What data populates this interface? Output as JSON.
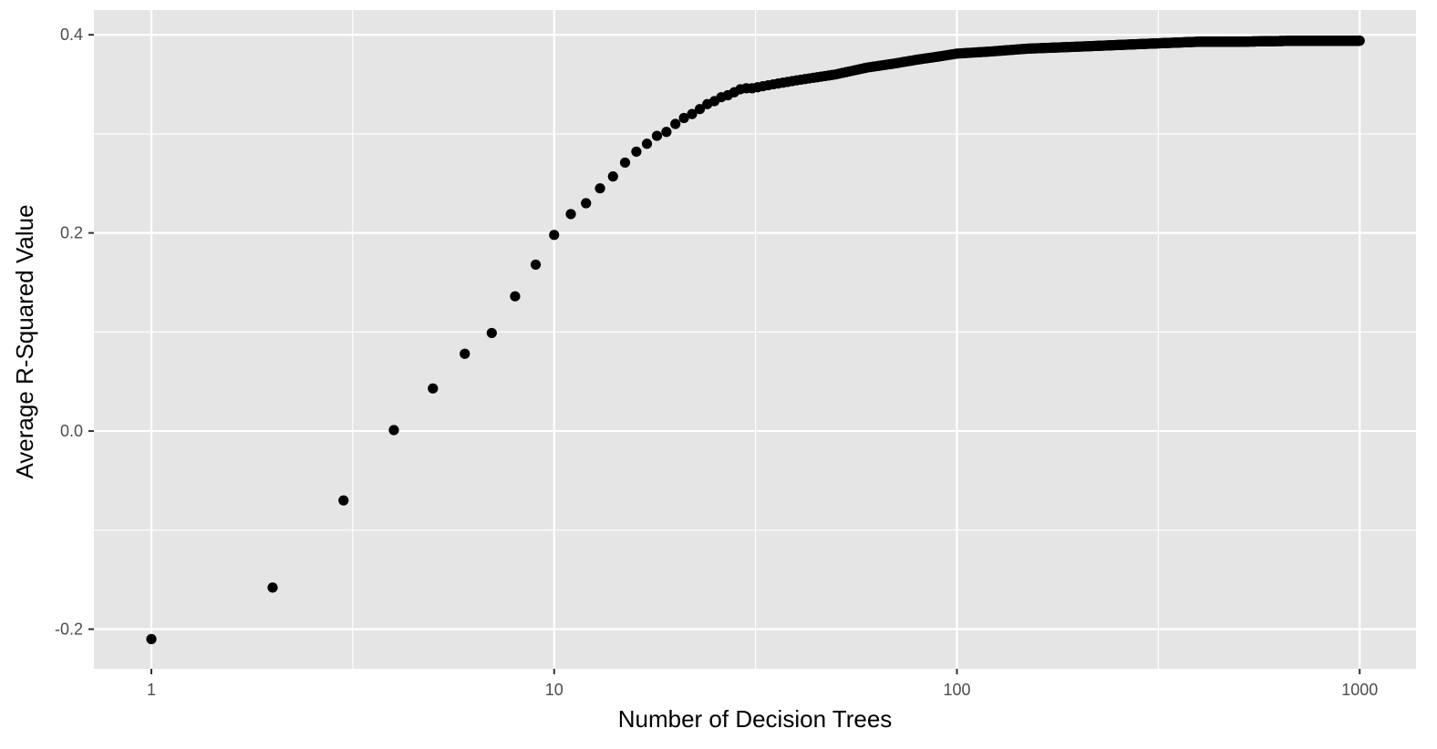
{
  "chart_data": {
    "type": "scatter",
    "title": "",
    "xlabel": "Number of Decision Trees",
    "ylabel": "Average R-Squared Value",
    "x_scale": "log10",
    "xlim": [
      0.72,
      1380
    ],
    "ylim": [
      -0.24,
      0.425
    ],
    "x_ticks": [
      {
        "value": 1,
        "label": "1"
      },
      {
        "value": 10,
        "label": "10"
      },
      {
        "value": 100,
        "label": "100"
      },
      {
        "value": 1000,
        "label": "1000"
      }
    ],
    "y_ticks": [
      {
        "value": -0.2,
        "label": "-0.2"
      },
      {
        "value": 0.0,
        "label": "0.0"
      },
      {
        "value": 0.2,
        "label": "0.2"
      },
      {
        "value": 0.4,
        "label": "0.4"
      }
    ],
    "grid": true,
    "panel_background": "#e5e5e5",
    "grid_color": "#ffffff",
    "point_color": "#000000",
    "points_listed": [
      [
        1,
        -0.21
      ],
      [
        2,
        -0.158
      ],
      [
        3,
        -0.07
      ],
      [
        4,
        0.001
      ],
      [
        5,
        0.043
      ],
      [
        6,
        0.078
      ],
      [
        7,
        0.099
      ],
      [
        8,
        0.136
      ],
      [
        9,
        0.168
      ],
      [
        10,
        0.198
      ],
      [
        11,
        0.219
      ],
      [
        12,
        0.23
      ],
      [
        13,
        0.245
      ],
      [
        14,
        0.257
      ],
      [
        15,
        0.271
      ],
      [
        16,
        0.282
      ],
      [
        17,
        0.29
      ],
      [
        18,
        0.298
      ],
      [
        19,
        0.302
      ],
      [
        20,
        0.31
      ],
      [
        21,
        0.316
      ],
      [
        22,
        0.32
      ],
      [
        23,
        0.325
      ],
      [
        24,
        0.33
      ],
      [
        25,
        0.333
      ],
      [
        26,
        0.337
      ],
      [
        27,
        0.339
      ],
      [
        28,
        0.342
      ],
      [
        29,
        0.345
      ],
      [
        30,
        0.346
      ]
    ],
    "curve_from_31": [
      [
        31,
        0.346
      ],
      [
        35,
        0.35
      ],
      [
        40,
        0.354
      ],
      [
        50,
        0.36
      ],
      [
        60,
        0.367
      ],
      [
        70,
        0.371
      ],
      [
        80,
        0.375
      ],
      [
        90,
        0.378
      ],
      [
        100,
        0.381
      ],
      [
        120,
        0.383
      ],
      [
        150,
        0.386
      ],
      [
        200,
        0.388
      ],
      [
        300,
        0.391
      ],
      [
        400,
        0.393
      ],
      [
        500,
        0.393
      ],
      [
        700,
        0.394
      ],
      [
        1000,
        0.394
      ]
    ]
  }
}
